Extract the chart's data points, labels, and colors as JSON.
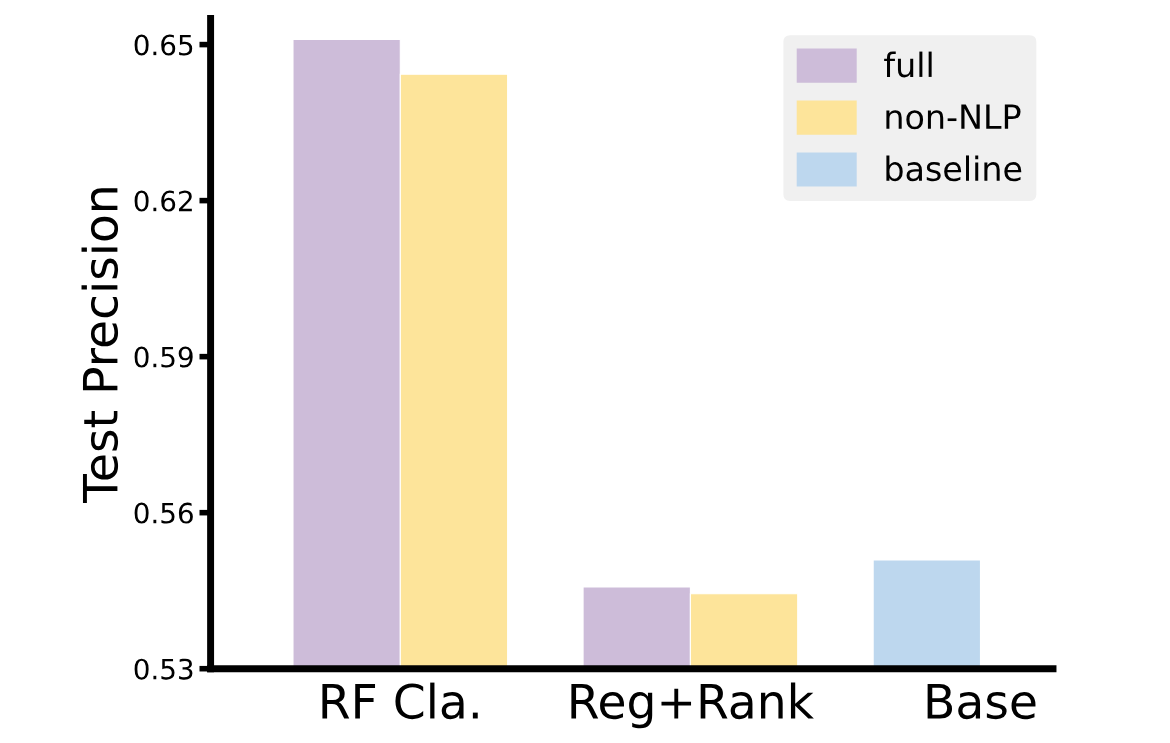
{
  "chart_data": {
    "type": "bar",
    "ylabel": "Test Precision",
    "categories": [
      "RF Cla.",
      "Reg+Rank",
      "Base"
    ],
    "series": [
      {
        "name": "full",
        "color": "#cdbcd9",
        "values": [
          0.651,
          0.5457,
          null
        ]
      },
      {
        "name": "non-NLP",
        "color": "#fde49a",
        "values": [
          0.6443,
          0.5444,
          null
        ]
      },
      {
        "name": "baseline",
        "color": "#bdd7ee",
        "values": [
          null,
          null,
          0.5509
        ]
      }
    ],
    "ylim": [
      0.53,
      0.655
    ],
    "yticks": [
      0.53,
      0.56,
      0.59,
      0.62,
      0.65
    ],
    "grid": false,
    "legend": "top right"
  }
}
